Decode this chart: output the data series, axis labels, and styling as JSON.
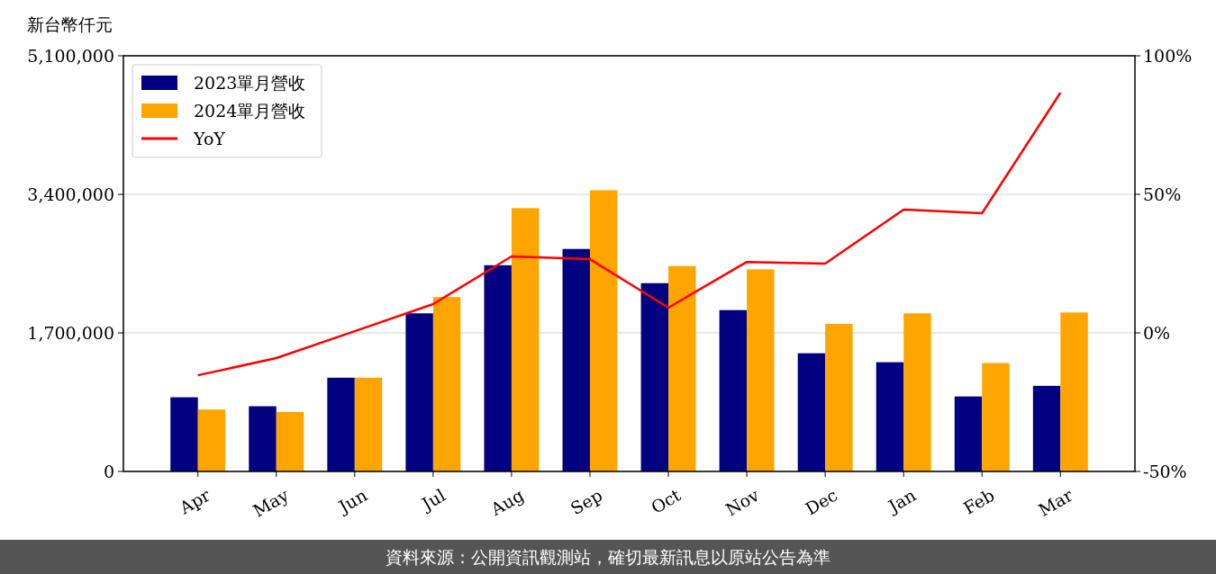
{
  "chart_data": {
    "type": "bar",
    "ylabel": "新台幣仟元",
    "categories": [
      "Apr",
      "May",
      "Jun",
      "Jul",
      "Aug",
      "Sep",
      "Oct",
      "Nov",
      "Dec",
      "Jan",
      "Feb",
      "Mar"
    ],
    "series": [
      {
        "name": "2023單月營收",
        "color": "#000080",
        "values": [
          910000,
          800000,
          1150000,
          1940000,
          2530000,
          2730000,
          2310000,
          1980000,
          1450000,
          1340000,
          920000,
          1050000
        ]
      },
      {
        "name": "2024單月營收",
        "color": "#ffa500",
        "values": [
          760000,
          730000,
          1150000,
          2140000,
          3230000,
          3450000,
          2520000,
          2480000,
          1810000,
          1940000,
          1330000,
          1950000
        ]
      },
      {
        "name": "YoY",
        "type": "line",
        "axis": "y2",
        "color": "#ff0000",
        "values": [
          -15.3,
          -9.1,
          0.6,
          10.4,
          27.6,
          26.6,
          9.1,
          25.6,
          25.0,
          44.5,
          43.2,
          86.7
        ]
      }
    ],
    "ylim": [
      0,
      5100000
    ],
    "yticks": [
      {
        "value": 0,
        "label": "0"
      },
      {
        "value": 1700000,
        "label": "1,700,000"
      },
      {
        "value": 3400000,
        "label": "3,400,000"
      },
      {
        "value": 5100000,
        "label": "5,100,000"
      }
    ],
    "y2lim": [
      -50,
      100
    ],
    "y2ticks": [
      {
        "value": -50,
        "label": "-50%"
      },
      {
        "value": 0,
        "label": "0%"
      },
      {
        "value": 50,
        "label": "50%"
      },
      {
        "value": 100,
        "label": "100%"
      }
    ],
    "grid": "y",
    "legend": "top left",
    "annotations": [
      "資料來源：公開資訊觀測站，確切最新訊息以原站公告為準"
    ]
  }
}
